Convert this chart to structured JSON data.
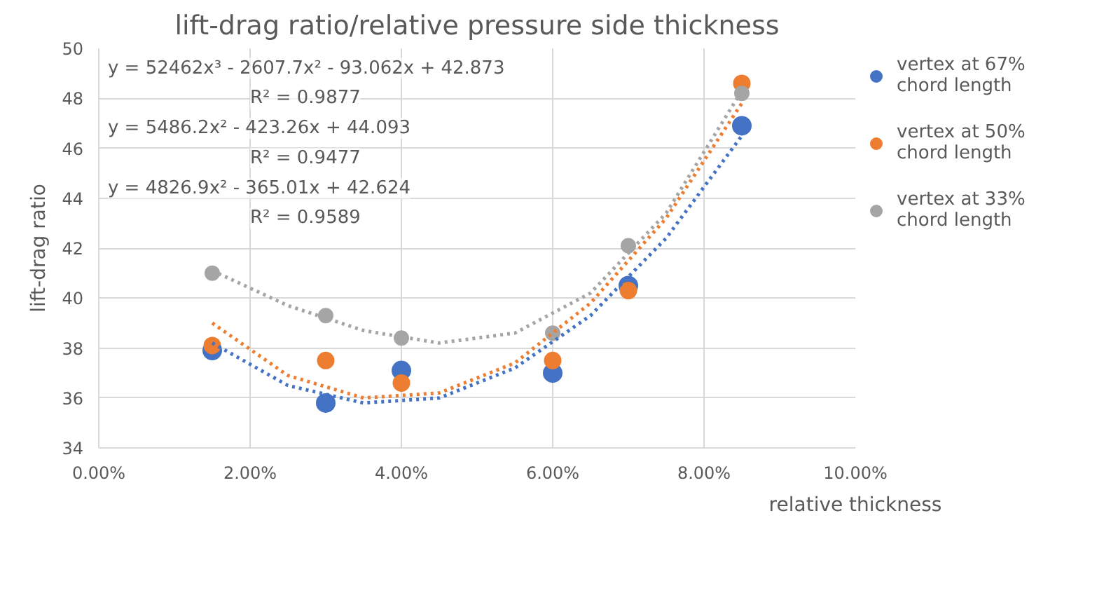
{
  "chart_data": {
    "type": "scatter",
    "title": "lift-drag ratio/relative pressure side thickness",
    "xlabel": "relative thickness",
    "ylabel": "lift-drag ratio",
    "x": [
      0.015,
      0.03,
      0.04,
      0.06,
      0.07,
      0.085
    ],
    "series": [
      {
        "name": "vertex at 67%\nchord length",
        "color": "#4472c4",
        "marker": "circle",
        "values": [
          37.9,
          35.8,
          37.1,
          37.0,
          40.5,
          46.9
        ]
      },
      {
        "name": "vertex at 50%\nchord length",
        "color": "#ed7d31",
        "marker": "circle",
        "values": [
          38.1,
          37.5,
          36.6,
          37.5,
          40.3,
          48.6
        ]
      },
      {
        "name": "vertex at 33%\nchord length",
        "color": "#a5a5a5",
        "marker": "circle",
        "values": [
          41.0,
          39.3,
          38.4,
          38.6,
          42.1,
          48.2
        ]
      },
      {
        "type": "line",
        "color": "#4472c4",
        "line_style": "dotted",
        "x": [
          0.015,
          0.025,
          0.035,
          0.045,
          0.055,
          0.065,
          0.075,
          0.085
        ],
        "values": [
          38.2,
          36.5,
          35.8,
          36.0,
          37.2,
          39.3,
          42.4,
          46.5
        ]
      },
      {
        "type": "line",
        "color": "#ed7d31",
        "line_style": "dotted",
        "x": [
          0.015,
          0.025,
          0.035,
          0.045,
          0.055,
          0.065,
          0.075,
          0.085
        ],
        "values": [
          39.0,
          36.9,
          36.0,
          36.2,
          37.4,
          39.8,
          43.2,
          47.8
        ]
      },
      {
        "type": "line",
        "color": "#a5a5a5",
        "line_style": "dotted",
        "x": [
          0.015,
          0.025,
          0.035,
          0.045,
          0.055,
          0.065,
          0.075,
          0.085
        ],
        "values": [
          41.1,
          39.7,
          38.7,
          38.2,
          38.6,
          40.2,
          43.4,
          48.3
        ]
      }
    ],
    "annotations": [
      "y = 52462x³ - 2607.7x² - 93.062x + 42.873",
      "R² = 0.9877",
      "y = 5486.2x² - 423.26x + 44.093",
      "R² = 0.9477",
      "y = 4826.9x² - 365.01x + 42.624",
      "R² = 0.9589"
    ],
    "xlim": [
      0,
      0.1
    ],
    "xticks": [
      {
        "value": 0,
        "label": "0.00%"
      },
      {
        "value": 0.02,
        "label": "2.00%"
      },
      {
        "value": 0.04,
        "label": "4.00%"
      },
      {
        "value": 0.06,
        "label": "6.00%"
      },
      {
        "value": 0.08,
        "label": "8.00%"
      },
      {
        "value": 0.1,
        "label": "10.00%"
      }
    ],
    "ylim": [
      34,
      50
    ],
    "yticks": [
      34,
      36,
      38,
      40,
      42,
      44,
      46,
      48,
      50
    ],
    "grid": true,
    "legend": "right"
  }
}
